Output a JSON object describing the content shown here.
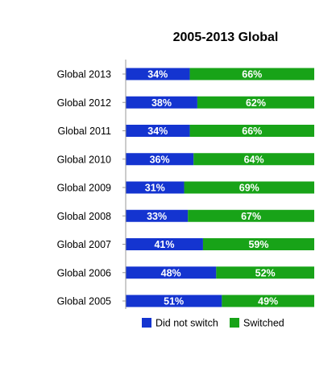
{
  "chart_data": {
    "type": "bar",
    "orientation": "horizontal",
    "stacked": true,
    "percent_stacked": true,
    "title": "2005-2013 Global",
    "xlabel": "",
    "ylabel": "",
    "xlim": [
      0,
      100
    ],
    "categories": [
      "Global 2013",
      "Global 2012",
      "Global 2011",
      "Global 2010",
      "Global 2009",
      "Global 2008",
      "Global 2007",
      "Global 2006",
      "Global 2005"
    ],
    "series": [
      {
        "name": "Did not switch",
        "color": "#1434d0",
        "values": [
          34,
          38,
          34,
          36,
          31,
          33,
          41,
          48,
          51
        ],
        "labels": [
          "34%",
          "38%",
          "34%",
          "36%",
          "31%",
          "33%",
          "41%",
          "48%",
          "51%"
        ]
      },
      {
        "name": "Switched",
        "color": "#18a318",
        "values": [
          66,
          62,
          66,
          64,
          69,
          67,
          59,
          52,
          49
        ],
        "labels": [
          "66%",
          "62%",
          "66%",
          "64%",
          "69%",
          "67%",
          "59%",
          "52%",
          "49%"
        ]
      }
    ],
    "legend_position": "bottom",
    "grid": false,
    "data_label_color": "#ffffff",
    "axis_color": "#999999",
    "text_color": "#000000"
  }
}
